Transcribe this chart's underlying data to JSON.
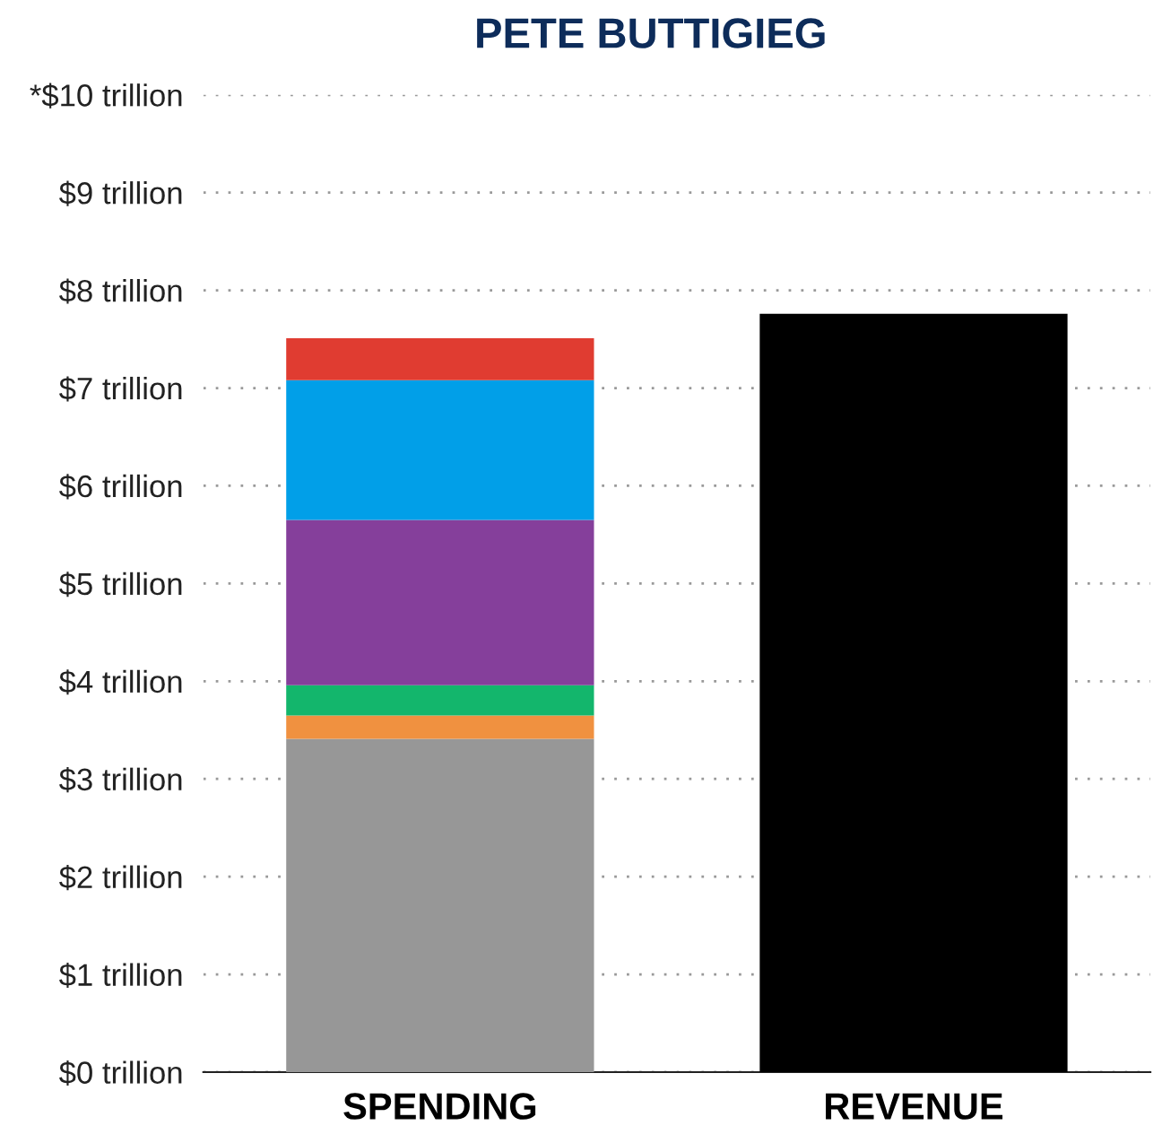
{
  "chart_data": {
    "type": "bar",
    "title": "PETE BUTTIGIEG",
    "stacked": true,
    "categories": [
      "SPENDING",
      "REVENUE"
    ],
    "series": [
      {
        "color": "#979797",
        "values": [
          3.41,
          null
        ]
      },
      {
        "color": "#f09140",
        "values": [
          0.24,
          null
        ]
      },
      {
        "color": "#13b66c",
        "values": [
          0.31,
          null
        ]
      },
      {
        "color": "#853f9b",
        "values": [
          1.69,
          null
        ]
      },
      {
        "color": "#019fe8",
        "values": [
          1.43,
          null
        ]
      },
      {
        "color": "#e03c31",
        "values": [
          0.43,
          null
        ]
      },
      {
        "color": "#000000",
        "values": [
          null,
          7.76
        ]
      }
    ],
    "ylim": [
      0,
      10
    ],
    "yticks": [
      {
        "value": 0,
        "label": "$0 trillion"
      },
      {
        "value": 1,
        "label": "$1 trillion"
      },
      {
        "value": 2,
        "label": "$2 trillion"
      },
      {
        "value": 3,
        "label": "$3 trillion"
      },
      {
        "value": 4,
        "label": "$4 trillion"
      },
      {
        "value": 5,
        "label": "$5 trillion"
      },
      {
        "value": 6,
        "label": "$6 trillion"
      },
      {
        "value": 7,
        "label": "$7 trillion"
      },
      {
        "value": 8,
        "label": "$8 trillion"
      },
      {
        "value": 9,
        "label": "$9 trillion"
      },
      {
        "value": 10,
        "label": "*$10 trillion"
      }
    ],
    "grid": "y"
  }
}
